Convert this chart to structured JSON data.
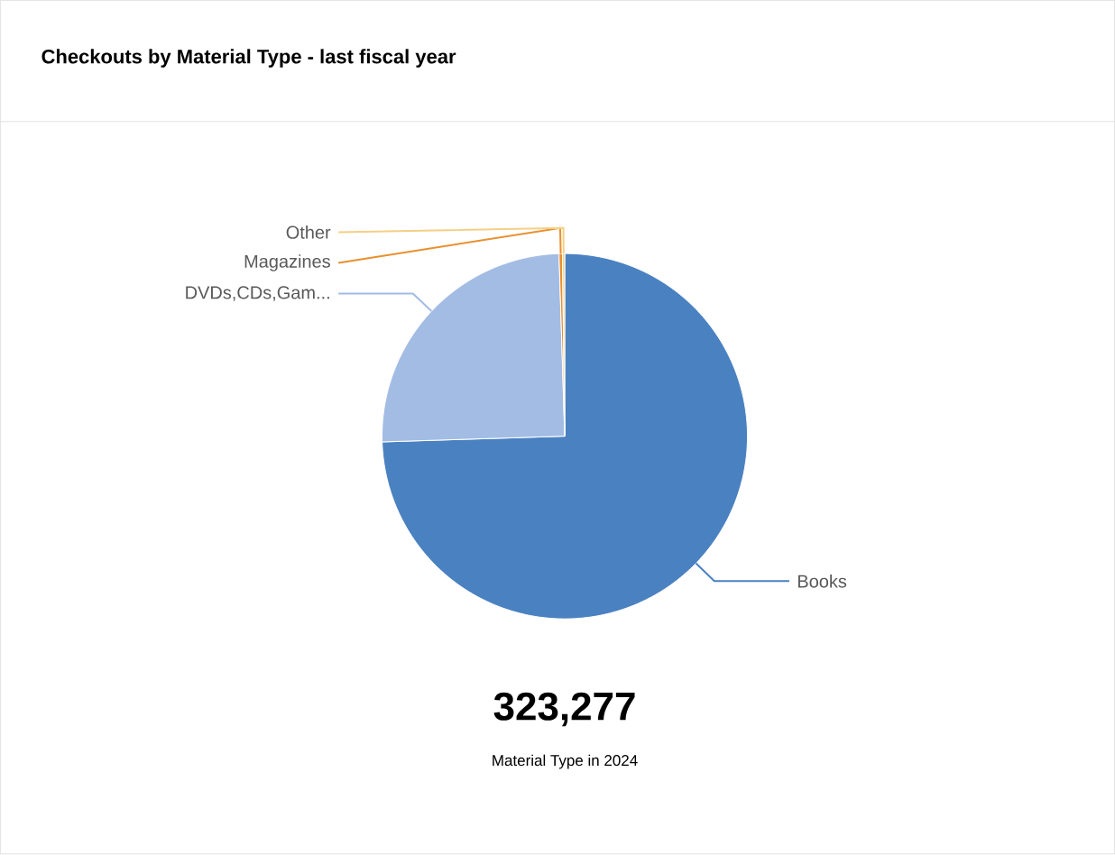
{
  "chart_data": {
    "type": "pie",
    "title": "Checkouts by Material Type - last fiscal year",
    "categories": [
      "Books",
      "DVDs,CDs,Gam...",
      "Magazines",
      "Other"
    ],
    "values": [
      74.5,
      25.0,
      0.3,
      0.2
    ],
    "colors": [
      "#4a81c1",
      "#a3bce4",
      "#e8902e",
      "#f5cf85"
    ],
    "annotations": [
      "**323,277**",
      "Material Type in 2024"
    ]
  }
}
